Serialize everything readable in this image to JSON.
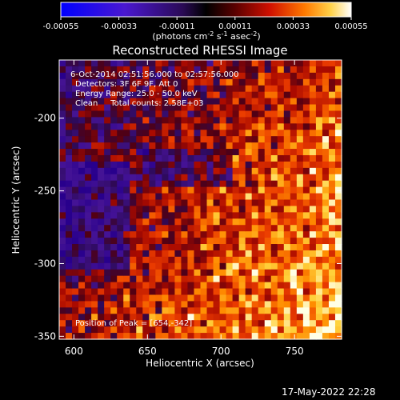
{
  "colorbar": {
    "ticks": [
      "-0.00055",
      "-0.00033",
      "-0.00011",
      "0.00011",
      "0.00033",
      "0.00055"
    ],
    "unit_prefix": "(photons cm",
    "unit_exp1": "-2",
    "unit_mid1": " s",
    "unit_exp2": "-1",
    "unit_mid2": " asec",
    "unit_exp3": "-2",
    "unit_suffix": ")",
    "range": [
      -0.00055,
      0.00055
    ]
  },
  "plot": {
    "title": "Reconstructed RHESSI Image",
    "info_lines": [
      "6-Oct-2014 02:51:56.000 to 02:57:56.000",
      "Detectors: 3F 6F 9F, Att 0",
      "Energy Range: 25.0 - 50.0 keV",
      "Clean     Total counts: 2.58E+03"
    ],
    "peak_label": "Position of Peak = [654,-342]",
    "timestamp": "17-May-2022 22:28"
  },
  "chart_data": {
    "type": "heatmap",
    "title": "Reconstructed RHESSI Image",
    "xlabel": "Heliocentric X (arcsec)",
    "ylabel": "Heliocentric Y (arcsec)",
    "xlim": [
      590,
      782
    ],
    "ylim": [
      -352,
      -160
    ],
    "xticks": [
      600,
      650,
      700,
      750
    ],
    "yticks": [
      -200,
      -250,
      -300,
      -350
    ],
    "grid": false,
    "colorscale": "red-temperature with blue negatives",
    "peak_position": [
      654,
      -342
    ]
  }
}
